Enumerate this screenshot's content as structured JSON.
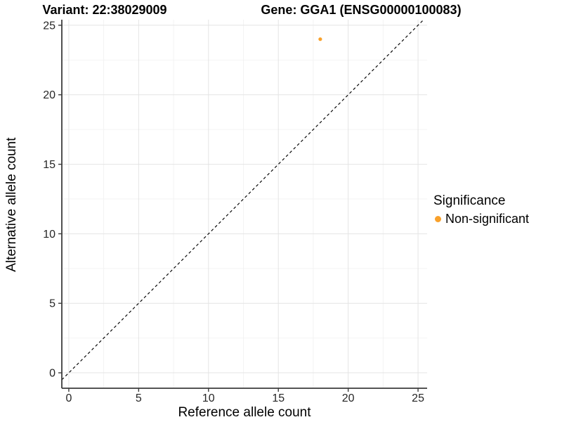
{
  "chart_data": {
    "type": "scatter",
    "title_left": "Variant: 22:38029009",
    "title_right": "Gene: GGA1 (ENSG00000100083)",
    "xlabel": "Reference allele count",
    "ylabel": "Alternative allele count",
    "x_ticks": [
      0,
      5,
      10,
      15,
      20,
      25
    ],
    "y_ticks": [
      0,
      5,
      10,
      15,
      20,
      25
    ],
    "xlim": [
      -0.5,
      25.65
    ],
    "ylim": [
      -1.11,
      25.4
    ],
    "grid": "major and minor gridlines on",
    "identity_line": {
      "slope": 1,
      "intercept": 0,
      "style": "dashed",
      "color": "#000000"
    },
    "points": [
      {
        "x": 18,
        "y": 24,
        "series": "Non-significant"
      }
    ],
    "legend": {
      "position": "right",
      "title": "Significance",
      "items": [
        {
          "label": "Non-significant",
          "color": "#F9A12B"
        }
      ]
    },
    "colors": {
      "point": "#F9A12B",
      "grid_major": "#E4E4E4",
      "grid_minor": "#F2F2F2",
      "axis_line": "#3C3C3C",
      "tick_mark": "#3C3C3C",
      "tick_text": "#262626",
      "title_text": "#000000"
    }
  }
}
